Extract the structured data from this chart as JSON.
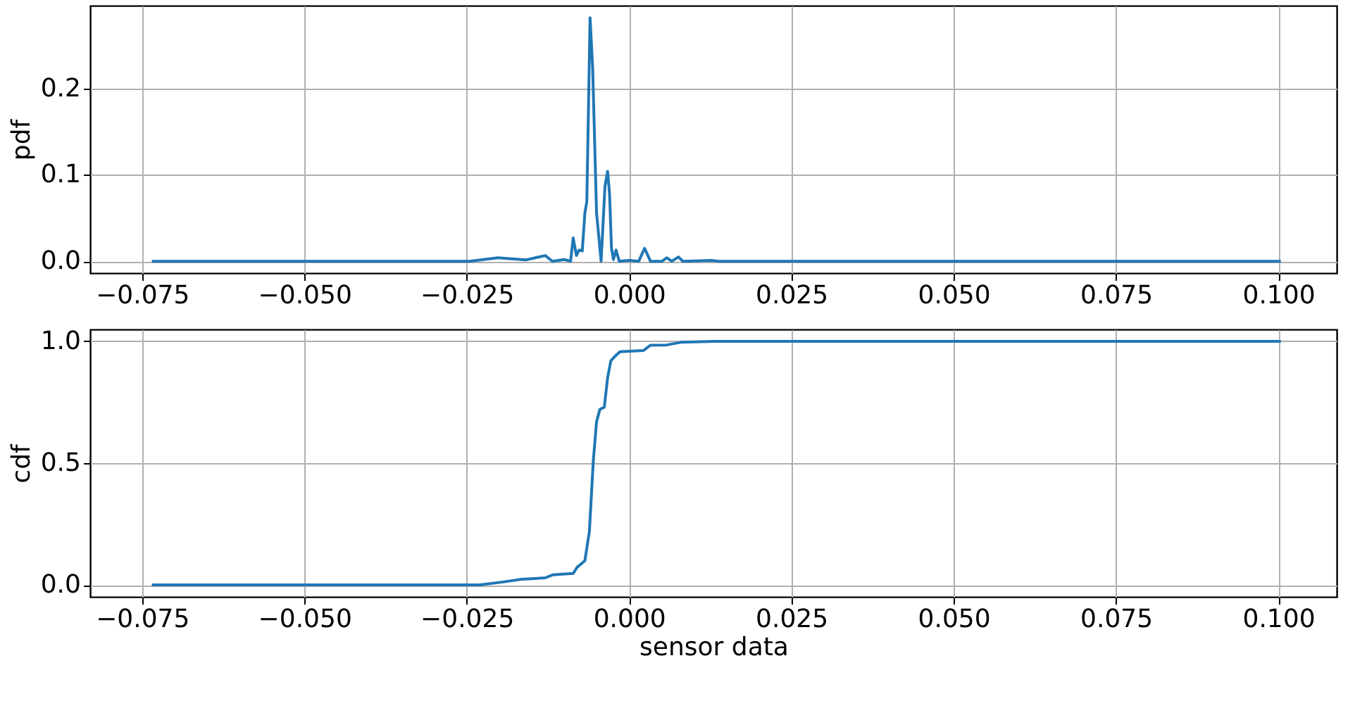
{
  "chart_data": [
    {
      "type": "line",
      "ylabel": "pdf",
      "grid": true,
      "xlim": [
        -0.083,
        0.109
      ],
      "ylim": [
        -0.0137,
        0.296
      ],
      "xticks": [
        {
          "value": -0.075,
          "label": "−0.075"
        },
        {
          "value": -0.05,
          "label": "−0.050"
        },
        {
          "value": -0.025,
          "label": "−0.025"
        },
        {
          "value": 0,
          "label": "0.000"
        },
        {
          "value": 0.025,
          "label": "0.025"
        },
        {
          "value": 0.05,
          "label": "0.050"
        },
        {
          "value": 0.075,
          "label": "0.075"
        },
        {
          "value": 0.1,
          "label": "0.100"
        }
      ],
      "yticks": [
        {
          "value": 0,
          "label": "0.0"
        },
        {
          "value": 0.1,
          "label": "0.1"
        },
        {
          "value": 0.2,
          "label": "0.2"
        }
      ],
      "series": [
        {
          "color": "#1f77b4",
          "x": [
            -0.0735,
            -0.0246,
            -0.0202,
            -0.0159,
            -0.0129,
            -0.0118,
            -0.01,
            -0.009,
            -0.0086,
            -0.0081,
            -0.0077,
            -0.0072,
            -0.0068,
            -0.0065,
            -0.006,
            -0.0056,
            -0.005,
            -0.0043,
            -0.0037,
            -0.0033,
            -0.003,
            -0.0027,
            -0.0024,
            -0.002,
            -0.0015,
            0.0,
            0.0015,
            0.0024,
            0.0033,
            0.0051,
            0.0058,
            0.0066,
            0.0076,
            0.0083,
            0.0127,
            0.0138,
            0.1004
          ],
          "values": [
            0.0,
            0.0,
            0.004,
            0.0015,
            0.0066,
            0.0,
            0.002,
            0.0,
            0.027,
            0.0066,
            0.013,
            0.012,
            0.056,
            0.069,
            0.282,
            0.224,
            0.056,
            0.0,
            0.087,
            0.104,
            0.078,
            0.015,
            0.002,
            0.013,
            0.0,
            0.001,
            0.0,
            0.015,
            0.0,
            0.0,
            0.004,
            0.0,
            0.005,
            0.0,
            0.001,
            0.0,
            0.0
          ]
        }
      ]
    },
    {
      "type": "line",
      "xlabel": "sensor data",
      "ylabel": "cdf",
      "grid": true,
      "xlim": [
        -0.083,
        0.109
      ],
      "ylim": [
        -0.049,
        1.049
      ],
      "xticks": [
        {
          "value": -0.075,
          "label": "−0.075"
        },
        {
          "value": -0.05,
          "label": "−0.050"
        },
        {
          "value": -0.025,
          "label": "−0.025"
        },
        {
          "value": 0,
          "label": "0.000"
        },
        {
          "value": 0.025,
          "label": "0.025"
        },
        {
          "value": 0.05,
          "label": "0.050"
        },
        {
          "value": 0.075,
          "label": "0.075"
        },
        {
          "value": 0.1,
          "label": "0.100"
        }
      ],
      "yticks": [
        {
          "value": 0,
          "label": "0.0"
        },
        {
          "value": 0.5,
          "label": "0.5"
        },
        {
          "value": 1,
          "label": "1.0"
        }
      ],
      "series": [
        {
          "color": "#1f77b4",
          "x": [
            -0.0735,
            -0.023,
            -0.0194,
            -0.0165,
            -0.0129,
            -0.0118,
            -0.0086,
            -0.008,
            -0.0068,
            -0.0061,
            -0.0055,
            -0.005,
            -0.0045,
            -0.0038,
            -0.0033,
            -0.0028,
            -0.0021,
            -0.0014,
            0.0022,
            0.0033,
            0.0058,
            0.008,
            0.0131,
            0.1004
          ],
          "values": [
            0.0,
            0.0,
            0.012,
            0.023,
            0.029,
            0.041,
            0.047,
            0.072,
            0.099,
            0.22,
            0.51,
            0.67,
            0.72,
            0.73,
            0.85,
            0.92,
            0.94,
            0.957,
            0.962,
            0.984,
            0.985,
            0.996,
            1.0,
            1.0
          ]
        }
      ]
    }
  ]
}
